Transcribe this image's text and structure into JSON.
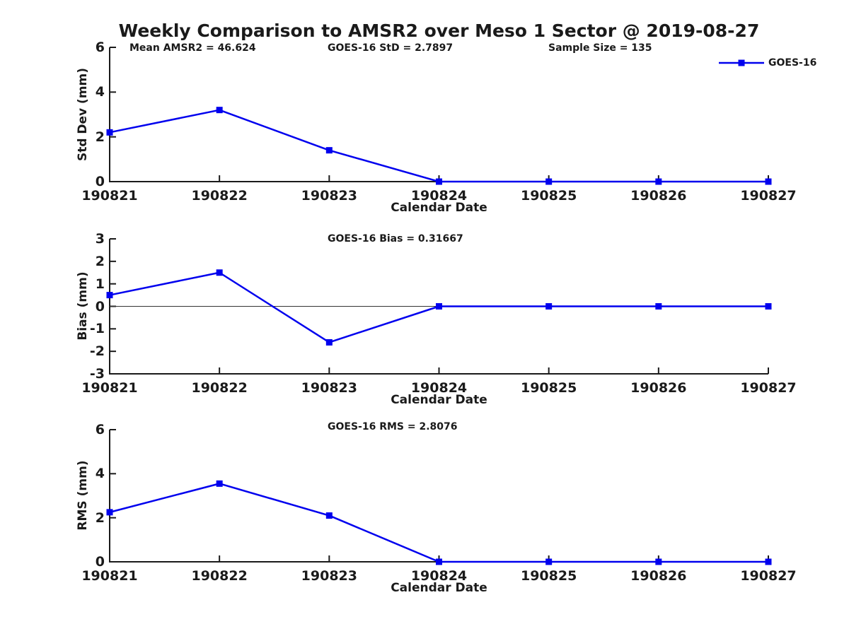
{
  "figure": {
    "title": "Weekly Comparison to AMSR2 over Meso 1 Sector @ 2019-08-27",
    "accent_color": "#0000EE",
    "text_color": "#1a1a1a",
    "axis_color": "#1a1a1a",
    "legend": {
      "label": "GOES-16",
      "marker": "square",
      "position": "top-right"
    }
  },
  "chart_data": [
    {
      "type": "line",
      "categories": [
        "190821",
        "190822",
        "190823",
        "190824",
        "190825",
        "190826",
        "190827"
      ],
      "series": [
        {
          "name": "GOES-16",
          "values": [
            2.2,
            3.2,
            1.4,
            0,
            0,
            0,
            0
          ]
        }
      ],
      "xlabel": "Calendar Date",
      "ylabel": "Std Dev (mm)",
      "ylim": [
        0,
        6
      ],
      "yticks": [
        0,
        2,
        4,
        6
      ],
      "grid": false,
      "zero_line": false,
      "annotations": [
        {
          "text": "Mean AMSR2 = 46.624"
        },
        {
          "text": "GOES-16 StD = 2.7897"
        },
        {
          "text": "Sample Size = 135"
        }
      ]
    },
    {
      "type": "line",
      "categories": [
        "190821",
        "190822",
        "190823",
        "190824",
        "190825",
        "190826",
        "190827"
      ],
      "series": [
        {
          "name": "GOES-16",
          "values": [
            0.5,
            1.5,
            -1.6,
            0,
            0,
            0,
            0
          ]
        }
      ],
      "xlabel": "Calendar Date",
      "ylabel": "Bias (mm)",
      "ylim": [
        -3,
        3
      ],
      "yticks": [
        3,
        2,
        1,
        0,
        -1,
        -2,
        -3
      ],
      "grid": false,
      "zero_line": true,
      "annotations": [
        {
          "text": "GOES-16 Bias  = 0.31667"
        }
      ]
    },
    {
      "type": "line",
      "categories": [
        "190821",
        "190822",
        "190823",
        "190824",
        "190825",
        "190826",
        "190827"
      ],
      "series": [
        {
          "name": "GOES-16",
          "values": [
            2.25,
            3.55,
            2.1,
            0,
            0,
            0,
            0
          ]
        }
      ],
      "xlabel": "Calendar Date",
      "ylabel": "RMS (mm)",
      "ylim": [
        0,
        6
      ],
      "yticks": [
        0,
        2,
        4,
        6
      ],
      "grid": false,
      "zero_line": false,
      "annotations": [
        {
          "text": "GOES-16 RMS = 2.8076"
        }
      ]
    }
  ]
}
